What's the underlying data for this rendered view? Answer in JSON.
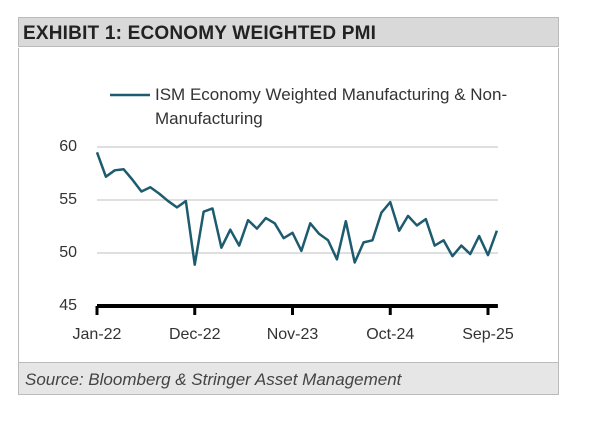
{
  "chart_data": {
    "type": "line",
    "title": "EXHIBIT 1: ECONOMY WEIGHTED PMI",
    "source": "Source: Bloomberg & Stringer Asset Management",
    "categories": [
      "Jan-22",
      null,
      null,
      null,
      null,
      null,
      null,
      null,
      null,
      null,
      null,
      "Dec-22",
      null,
      null,
      null,
      null,
      null,
      null,
      null,
      null,
      null,
      null,
      "Nov-23",
      null,
      null,
      null,
      null,
      null,
      null,
      null,
      null,
      null,
      null,
      "Oct-24",
      null,
      null,
      null,
      null,
      null,
      null,
      null,
      null,
      null,
      null,
      "Sep-25",
      null
    ],
    "series": [
      {
        "name": "ISM Economy Weighted Manufacturing & Non-Manufacturing",
        "color": "#1d5b6f",
        "values": [
          59.5,
          57.2,
          57.8,
          57.9,
          56.9,
          55.8,
          56.2,
          55.6,
          54.9,
          54.3,
          54.9,
          48.9,
          53.9,
          54.2,
          50.5,
          52.2,
          50.7,
          53.1,
          52.3,
          53.3,
          52.8,
          51.4,
          51.9,
          50.2,
          52.8,
          51.8,
          51.2,
          49.4,
          53.0,
          49.1,
          51.0,
          51.2,
          53.8,
          54.8,
          52.1,
          53.5,
          52.6,
          53.2,
          50.7,
          51.2,
          49.7,
          50.7,
          49.9,
          51.6,
          49.8,
          52.1
        ]
      }
    ],
    "ylim": [
      45,
      60
    ],
    "yticks": [
      45,
      50,
      55,
      60
    ],
    "grid": true
  }
}
